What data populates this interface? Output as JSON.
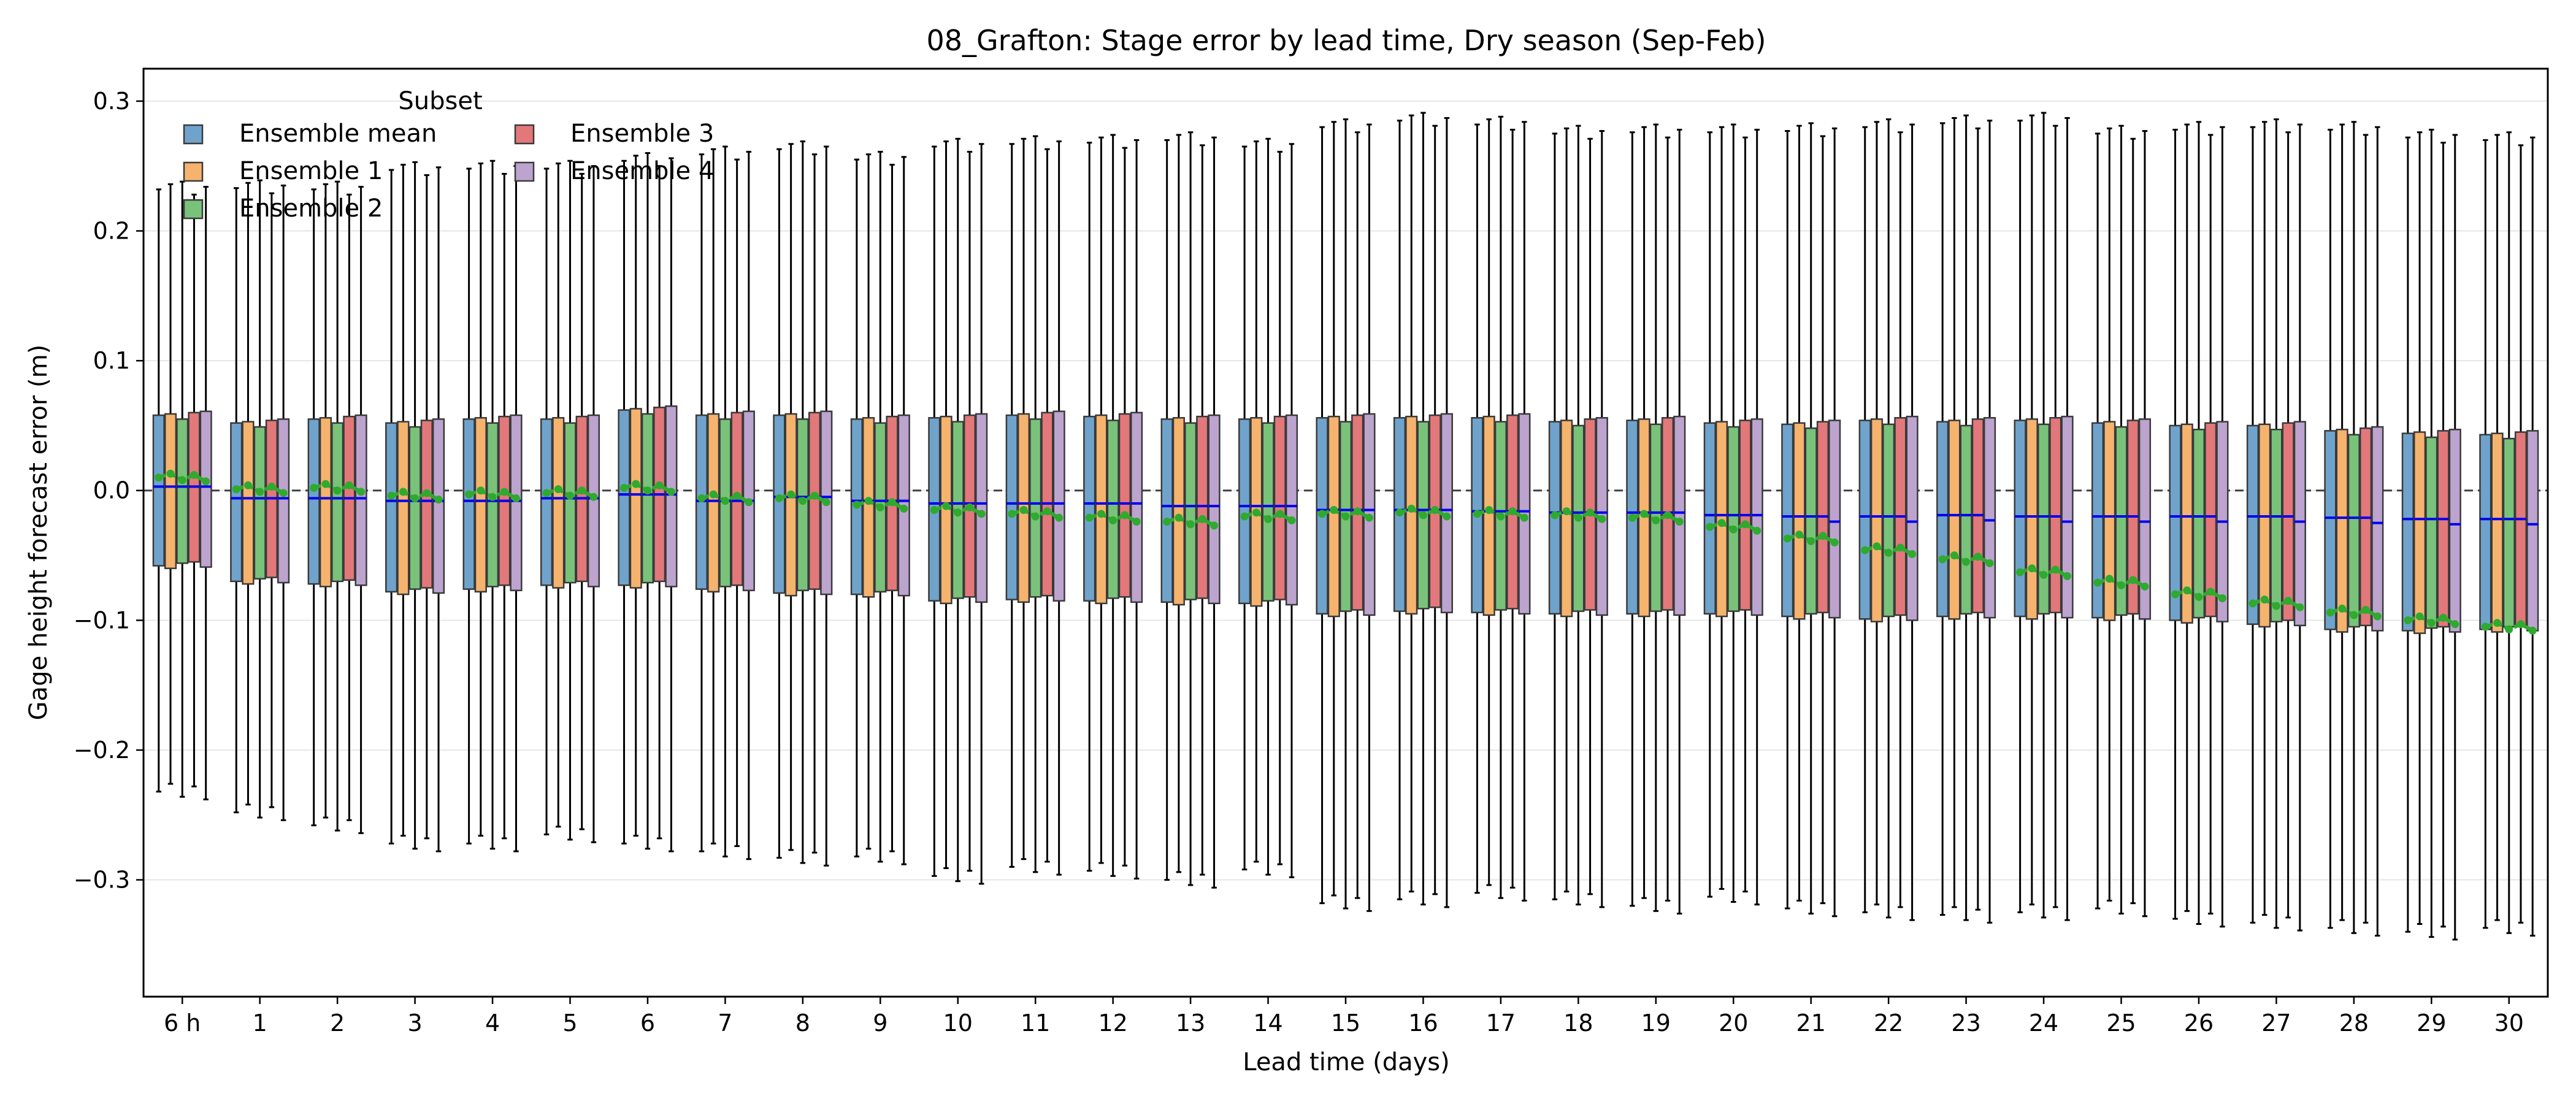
{
  "chart_data": {
    "type": "box",
    "title": "08_Grafton: Stage error by lead time, Dry season (Sep-Feb)",
    "xlabel": "Lead time (days)",
    "ylabel": "Gage height forecast error (m)",
    "ylim": [
      -0.39,
      0.325
    ],
    "yticks": [
      0.3,
      0.2,
      0.1,
      0.0,
      -0.1,
      -0.2,
      -0.3
    ],
    "ytick_labels": [
      "0.3",
      "0.2",
      "0.1",
      "0.0",
      "−0.1",
      "−0.2",
      "−0.3"
    ],
    "categories": [
      "6 h",
      "1",
      "2",
      "3",
      "4",
      "5",
      "6",
      "7",
      "8",
      "9",
      "10",
      "11",
      "12",
      "13",
      "14",
      "15",
      "16",
      "17",
      "18",
      "19",
      "20",
      "21",
      "22",
      "23",
      "24",
      "25",
      "26",
      "27",
      "28",
      "29",
      "30"
    ],
    "grid": "horizontal",
    "zero_line": 0.0,
    "legend": {
      "title": "Subset",
      "position": "top-left",
      "entries": [
        "Ensemble mean",
        "Ensemble 1",
        "Ensemble 2",
        "Ensemble 3",
        "Ensemble 4"
      ]
    },
    "series": [
      {
        "name": "Ensemble mean",
        "color": "#6fa3cc"
      },
      {
        "name": "Ensemble 1",
        "color": "#f5b36e"
      },
      {
        "name": "Ensemble 2",
        "color": "#79c27a"
      },
      {
        "name": "Ensemble 3",
        "color": "#e2787a"
      },
      {
        "name": "Ensemble 4",
        "color": "#bca4cf"
      }
    ],
    "median_color": "#0000ee",
    "mean_color": "#2eaa2e",
    "whisker_low": [
      -0.232,
      -0.248,
      -0.258,
      -0.272,
      -0.272,
      -0.265,
      -0.272,
      -0.278,
      -0.283,
      -0.282,
      -0.297,
      -0.29,
      -0.293,
      -0.3,
      -0.292,
      -0.318,
      -0.315,
      -0.31,
      -0.315,
      -0.32,
      -0.313,
      -0.322,
      -0.325,
      -0.327,
      -0.325,
      -0.322,
      -0.33,
      -0.333,
      -0.337,
      -0.34,
      -0.337
    ],
    "whisker_high": [
      0.232,
      0.233,
      0.232,
      0.247,
      0.248,
      0.248,
      0.254,
      0.259,
      0.263,
      0.255,
      0.265,
      0.267,
      0.268,
      0.27,
      0.265,
      0.28,
      0.285,
      0.282,
      0.275,
      0.276,
      0.276,
      0.277,
      0.28,
      0.283,
      0.285,
      0.275,
      0.278,
      0.28,
      0.278,
      0.272,
      0.27
    ],
    "q1": [
      -0.058,
      -0.07,
      -0.072,
      -0.078,
      -0.076,
      -0.073,
      -0.073,
      -0.076,
      -0.079,
      -0.08,
      -0.085,
      -0.084,
      -0.085,
      -0.086,
      -0.087,
      -0.095,
      -0.093,
      -0.094,
      -0.095,
      -0.095,
      -0.095,
      -0.097,
      -0.099,
      -0.097,
      -0.097,
      -0.098,
      -0.1,
      -0.103,
      -0.107,
      -0.108,
      -0.107
    ],
    "q3": [
      0.058,
      0.052,
      0.055,
      0.052,
      0.055,
      0.055,
      0.062,
      0.058,
      0.058,
      0.055,
      0.056,
      0.058,
      0.057,
      0.055,
      0.055,
      0.056,
      0.056,
      0.056,
      0.053,
      0.054,
      0.052,
      0.051,
      0.054,
      0.053,
      0.054,
      0.052,
      0.05,
      0.05,
      0.046,
      0.044,
      0.043
    ],
    "median": [
      0.003,
      -0.006,
      -0.006,
      -0.008,
      -0.008,
      -0.006,
      -0.003,
      -0.008,
      -0.005,
      -0.008,
      -0.01,
      -0.01,
      -0.01,
      -0.012,
      -0.012,
      -0.015,
      -0.015,
      -0.016,
      -0.017,
      -0.017,
      -0.019,
      -0.02,
      -0.02,
      -0.019,
      -0.02,
      -0.02,
      -0.02,
      -0.02,
      -0.021,
      -0.022,
      -0.022
    ],
    "mean": [
      0.01,
      0.001,
      0.002,
      -0.004,
      -0.003,
      -0.002,
      0.002,
      -0.006,
      -0.006,
      -0.011,
      -0.015,
      -0.018,
      -0.021,
      -0.024,
      -0.02,
      -0.018,
      -0.017,
      -0.018,
      -0.019,
      -0.021,
      -0.028,
      -0.037,
      -0.046,
      -0.053,
      -0.063,
      -0.071,
      -0.08,
      -0.087,
      -0.094,
      -0.1,
      -0.105
    ]
  }
}
